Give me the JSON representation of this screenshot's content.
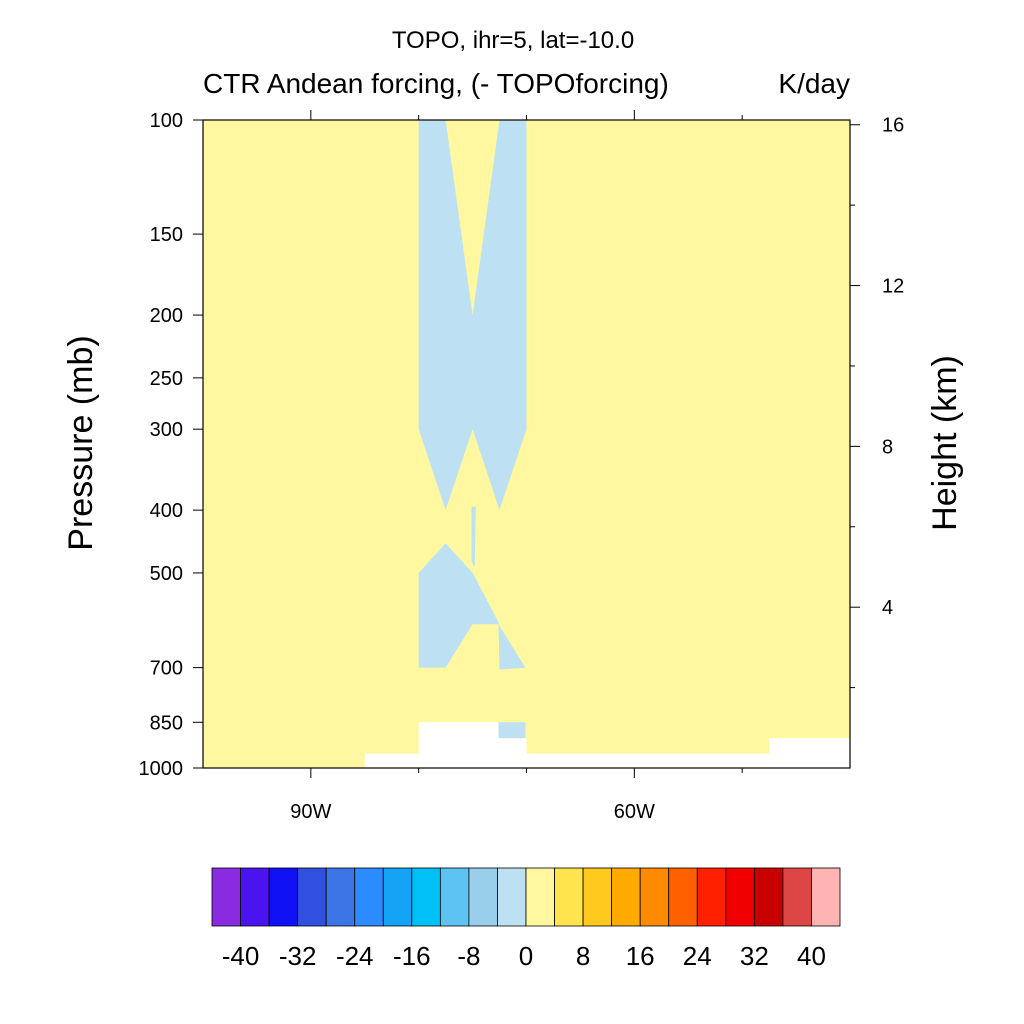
{
  "chart_data": {
    "type": "heatmap",
    "title": "TOPO, ihr=5, lat=-10.0",
    "subtitle_left": "CTR Andean forcing, (- TOPOforcing)",
    "subtitle_right": "K/day",
    "ylabel": "Pressure (mb)",
    "ylabel_right": "Height (km)",
    "x_range": [
      -100,
      -40
    ],
    "y_range_mb": [
      1000,
      100
    ],
    "y_scale": "log",
    "x_ticks": [
      {
        "value": -90,
        "label": "90W"
      },
      {
        "value": -60,
        "label": "60W"
      }
    ],
    "x_minor_ticks": [
      -80,
      -70,
      -50
    ],
    "y_ticks": [
      {
        "value": 100,
        "label": "100"
      },
      {
        "value": 150,
        "label": "150"
      },
      {
        "value": 200,
        "label": "200"
      },
      {
        "value": 250,
        "label": "250"
      },
      {
        "value": 300,
        "label": "300"
      },
      {
        "value": 400,
        "label": "400"
      },
      {
        "value": 500,
        "label": "500"
      },
      {
        "value": 700,
        "label": "700"
      },
      {
        "value": 850,
        "label": "850"
      },
      {
        "value": 1000,
        "label": "1000"
      }
    ],
    "height_ticks_km": [
      {
        "value": 16,
        "label": "16"
      },
      {
        "value": 12,
        "label": "12"
      },
      {
        "value": 8,
        "label": "8"
      },
      {
        "value": 4,
        "label": "4"
      }
    ],
    "background_fill": {
      "value_range": [
        0,
        4
      ],
      "color": "#fff8a0"
    },
    "regions": [
      {
        "value_range": [
          -4,
          0
        ],
        "color": "#bde1f2",
        "polygon": [
          [
            -80,
            100
          ],
          [
            -77.5,
            100
          ],
          [
            -75,
            200
          ],
          [
            -72.5,
            100
          ],
          [
            -70,
            100
          ],
          [
            -70,
            300
          ],
          [
            -72.5,
            400
          ],
          [
            -75,
            300
          ],
          [
            -77.5,
            400
          ],
          [
            -80,
            300
          ]
        ]
      },
      {
        "value_range": [
          -4,
          0
        ],
        "color": "#bde1f2",
        "polygon": [
          [
            -80,
            500
          ],
          [
            -77.5,
            450
          ],
          [
            -75,
            500
          ],
          [
            -72.5,
            600
          ],
          [
            -75,
            600
          ],
          [
            -77.5,
            700
          ],
          [
            -80,
            700
          ]
        ]
      },
      {
        "value_range": [
          -4,
          0
        ],
        "color": "#bde1f2",
        "polygon": [
          [
            -75.1,
            395
          ],
          [
            -74.7,
            395
          ],
          [
            -74.8,
            490
          ],
          [
            -75.1,
            480
          ]
        ]
      },
      {
        "value_range": [
          -4,
          0
        ],
        "color": "#bde1f2",
        "polygon": [
          [
            -72.6,
            600
          ],
          [
            -70.1,
            700
          ],
          [
            -72.5,
            705
          ]
        ]
      },
      {
        "value_range": [
          -4,
          0
        ],
        "color": "#bde1f2",
        "polygon": [
          [
            -72.6,
            850
          ],
          [
            -70.1,
            850
          ],
          [
            -70.1,
            900
          ],
          [
            -72.6,
            900
          ]
        ]
      }
    ],
    "missing_regions": [
      {
        "polygon": [
          [
            -85,
            1000
          ],
          [
            -85,
            950
          ],
          [
            -80,
            950
          ],
          [
            -80,
            1000
          ]
        ]
      },
      {
        "polygon": [
          [
            -80,
            1000
          ],
          [
            -80,
            850
          ],
          [
            -72.6,
            850
          ],
          [
            -72.6,
            900
          ],
          [
            -70,
            900
          ],
          [
            -70,
            1000
          ]
        ]
      },
      {
        "polygon": [
          [
            -70,
            1000
          ],
          [
            -70,
            950
          ],
          [
            -47.5,
            950
          ],
          [
            -47.5,
            1000
          ]
        ]
      },
      {
        "polygon": [
          [
            -47.5,
            1000
          ],
          [
            -47.5,
            900
          ],
          [
            -40,
            900
          ],
          [
            -40,
            1000
          ]
        ]
      }
    ],
    "colorbar": {
      "colors": [
        "#8a2be2",
        "#4b13f0",
        "#1010f5",
        "#3050e0",
        "#3c76e6",
        "#2a8cff",
        "#14a3f5",
        "#00c0f8",
        "#5cc3f2",
        "#99cfeb",
        "#bde1f2",
        "#fff8a0",
        "#ffe44d",
        "#ffc91e",
        "#ffaa00",
        "#ff8a00",
        "#ff6000",
        "#ff2000",
        "#f00000",
        "#c80000",
        "#de4646",
        "#ffb4b4"
      ],
      "tick_labels": [
        "-40",
        "-32",
        "-24",
        "-16",
        "-8",
        "0",
        "8",
        "16",
        "24",
        "32",
        "40"
      ]
    }
  }
}
